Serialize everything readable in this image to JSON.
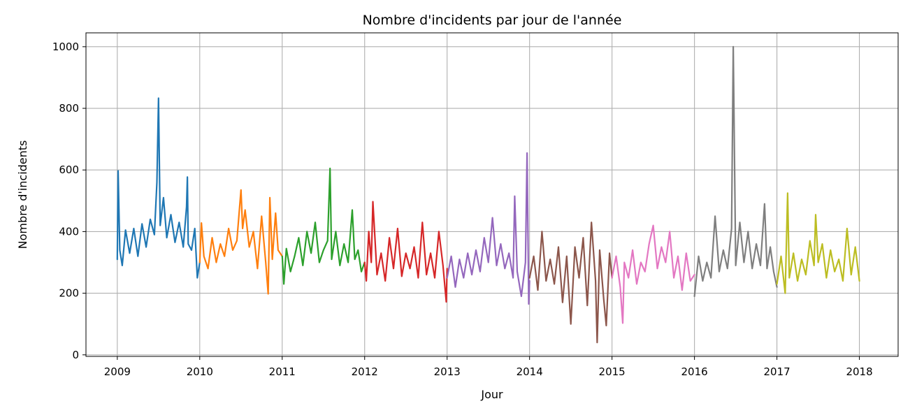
{
  "chart_data": {
    "type": "line",
    "title": "Nombre d'incidents par jour de l'année",
    "xlabel": "Jour",
    "ylabel": "Nombre d'incidents",
    "xlim": [
      2008.62,
      2018.47
    ],
    "ylim": [
      -5,
      1045
    ],
    "grid": true,
    "legend": "none",
    "x_ticks": [
      2009,
      2010,
      2011,
      2012,
      2013,
      2014,
      2015,
      2016,
      2017,
      2018
    ],
    "x_tick_labels": [
      "2009",
      "2010",
      "2011",
      "2012",
      "2013",
      "2014",
      "2015",
      "2016",
      "2017",
      "2018"
    ],
    "y_ticks": [
      0,
      200,
      400,
      600,
      800,
      1000
    ],
    "y_tick_labels": [
      "0",
      "200",
      "400",
      "600",
      "800",
      "1000"
    ],
    "series": [
      {
        "color": "#1f77b4",
        "x": [
          2009.0,
          2009.01,
          2009.03,
          2009.06,
          2009.1,
          2009.15,
          2009.2,
          2009.25,
          2009.3,
          2009.35,
          2009.4,
          2009.45,
          2009.48,
          2009.5,
          2009.52,
          2009.56,
          2009.6,
          2009.65,
          2009.7,
          2009.75,
          2009.8,
          2009.84,
          2009.85,
          2009.86,
          2009.9,
          2009.94,
          2009.97,
          2010.0
        ],
        "y": [
          310,
          597,
          340,
          290,
          405,
          330,
          410,
          320,
          425,
          350,
          440,
          390,
          560,
          833,
          420,
          510,
          380,
          455,
          365,
          430,
          350,
          480,
          577,
          360,
          340,
          410,
          250,
          300
        ]
      },
      {
        "color": "#ff7f0e",
        "x": [
          2010.0,
          2010.02,
          2010.05,
          2010.1,
          2010.15,
          2010.2,
          2010.25,
          2010.3,
          2010.35,
          2010.4,
          2010.45,
          2010.5,
          2010.52,
          2010.55,
          2010.6,
          2010.65,
          2010.7,
          2010.75,
          2010.8,
          2010.83,
          2010.85,
          2010.88,
          2010.92,
          2010.95,
          2011.0
        ],
        "y": [
          300,
          428,
          320,
          280,
          380,
          300,
          360,
          320,
          410,
          340,
          370,
          535,
          410,
          470,
          350,
          400,
          280,
          450,
          300,
          198,
          510,
          310,
          460,
          340,
          320
        ]
      },
      {
        "color": "#2ca02c",
        "x": [
          2011.0,
          2011.02,
          2011.05,
          2011.1,
          2011.15,
          2011.2,
          2011.25,
          2011.3,
          2011.35,
          2011.4,
          2011.45,
          2011.5,
          2011.55,
          2011.58,
          2011.6,
          2011.65,
          2011.7,
          2011.75,
          2011.8,
          2011.85,
          2011.88,
          2011.92,
          2011.96,
          2012.0
        ],
        "y": [
          320,
          230,
          345,
          270,
          320,
          380,
          290,
          400,
          330,
          430,
          300,
          340,
          370,
          605,
          310,
          400,
          290,
          360,
          300,
          470,
          310,
          340,
          270,
          300
        ]
      },
      {
        "color": "#d62728",
        "x": [
          2012.0,
          2012.02,
          2012.05,
          2012.08,
          2012.1,
          2012.15,
          2012.2,
          2012.25,
          2012.3,
          2012.35,
          2012.4,
          2012.45,
          2012.5,
          2012.55,
          2012.6,
          2012.65,
          2012.7,
          2012.75,
          2012.8,
          2012.85,
          2012.9,
          2012.95,
          2012.99,
          2013.0
        ],
        "y": [
          300,
          240,
          400,
          300,
          497,
          260,
          330,
          240,
          380,
          280,
          410,
          255,
          330,
          280,
          350,
          250,
          430,
          260,
          330,
          250,
          400,
          290,
          172,
          280
        ]
      },
      {
        "color": "#9467bd",
        "x": [
          2013.0,
          2013.05,
          2013.1,
          2013.15,
          2013.2,
          2013.25,
          2013.3,
          2013.35,
          2013.4,
          2013.45,
          2013.5,
          2013.55,
          2013.6,
          2013.65,
          2013.7,
          2013.75,
          2013.8,
          2013.82,
          2013.85,
          2013.9,
          2013.95,
          2013.97,
          2013.99,
          2014.0
        ],
        "y": [
          250,
          320,
          220,
          310,
          250,
          330,
          260,
          340,
          270,
          380,
          300,
          445,
          290,
          360,
          280,
          330,
          250,
          515,
          270,
          190,
          300,
          655,
          165,
          240
        ]
      },
      {
        "color": "#8c564b",
        "x": [
          2014.0,
          2014.05,
          2014.1,
          2014.15,
          2014.2,
          2014.25,
          2014.3,
          2014.35,
          2014.4,
          2014.45,
          2014.5,
          2014.55,
          2014.6,
          2014.65,
          2014.7,
          2014.75,
          2014.8,
          2014.82,
          2014.85,
          2014.9,
          2014.93,
          2014.97,
          2015.0
        ],
        "y": [
          250,
          320,
          210,
          400,
          240,
          310,
          230,
          350,
          170,
          320,
          100,
          350,
          250,
          380,
          160,
          430,
          240,
          40,
          340,
          180,
          95,
          330,
          250
        ]
      },
      {
        "color": "#e377c2",
        "x": [
          2015.0,
          2015.05,
          2015.1,
          2015.13,
          2015.15,
          2015.2,
          2015.25,
          2015.3,
          2015.35,
          2015.4,
          2015.45,
          2015.5,
          2015.55,
          2015.6,
          2015.65,
          2015.7,
          2015.75,
          2015.8,
          2015.85,
          2015.9,
          2015.95,
          2016.0
        ],
        "y": [
          250,
          320,
          220,
          103,
          300,
          250,
          340,
          230,
          300,
          270,
          360,
          420,
          280,
          350,
          300,
          400,
          250,
          320,
          210,
          330,
          240,
          260
        ]
      },
      {
        "color": "#7f7f7f",
        "x": [
          2016.0,
          2016.05,
          2016.1,
          2016.15,
          2016.2,
          2016.25,
          2016.3,
          2016.35,
          2016.4,
          2016.45,
          2016.47,
          2016.5,
          2016.55,
          2016.6,
          2016.65,
          2016.7,
          2016.75,
          2016.8,
          2016.85,
          2016.88,
          2016.92,
          2016.96,
          2017.0
        ],
        "y": [
          190,
          320,
          240,
          300,
          250,
          450,
          270,
          340,
          280,
          410,
          1000,
          290,
          430,
          300,
          400,
          280,
          360,
          290,
          490,
          280,
          350,
          270,
          220
        ]
      },
      {
        "color": "#bcbd22",
        "x": [
          2017.0,
          2017.05,
          2017.1,
          2017.13,
          2017.15,
          2017.2,
          2017.25,
          2017.3,
          2017.35,
          2017.4,
          2017.45,
          2017.47,
          2017.5,
          2017.55,
          2017.6,
          2017.65,
          2017.7,
          2017.75,
          2017.8,
          2017.85,
          2017.9,
          2017.95,
          2018.0
        ],
        "y": [
          230,
          320,
          200,
          525,
          250,
          330,
          240,
          310,
          260,
          370,
          290,
          455,
          300,
          360,
          250,
          340,
          270,
          310,
          240,
          410,
          260,
          350,
          240
        ]
      }
    ]
  }
}
